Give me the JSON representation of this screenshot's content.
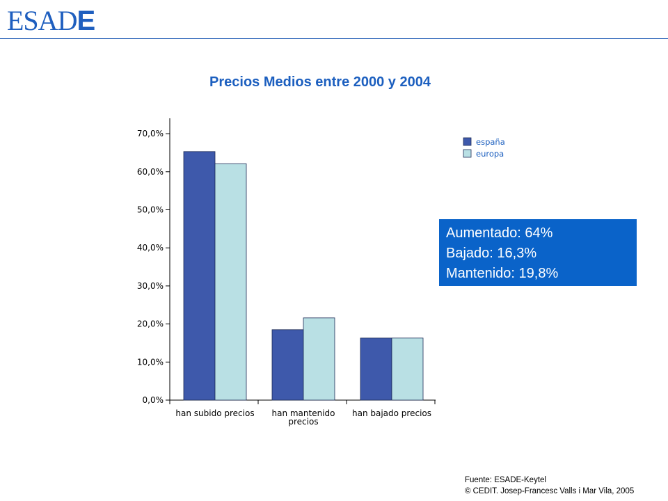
{
  "logo": {
    "main": "ESAD",
    "last": "E"
  },
  "chart_data": {
    "type": "bar",
    "title": "Precios Medios entre 2000 y 2004",
    "categories": [
      [
        "han subido precios"
      ],
      [
        "han mantenido",
        "precios"
      ],
      [
        "han bajado precios"
      ]
    ],
    "series": [
      {
        "name": "españa",
        "values": [
          65.3,
          18.5,
          16.3
        ],
        "color": "#3e59ab"
      },
      {
        "name": "europa",
        "values": [
          62.1,
          21.6,
          16.3
        ],
        "color": "#b9e0e4"
      }
    ],
    "ylim": [
      0,
      70
    ],
    "yticks": [
      0,
      10,
      20,
      30,
      40,
      50,
      60,
      70
    ],
    "ytick_labels": [
      "0,0%",
      "10,0%",
      "20,0%",
      "30,0%",
      "40,0%",
      "50,0%",
      "60,0%",
      "70,0%"
    ],
    "xlabel": "",
    "ylabel": "",
    "legend_position": "top-right"
  },
  "summary": [
    "Aumentado: 64%",
    "Bajado: 16,3%",
    "Mantenido: 19,8%"
  ],
  "footer": {
    "source": "Fuente: ESADE-Keytel",
    "copyright": "© CEDIT.  Josep-Francesc Valls i Mar Vila, 2005"
  }
}
